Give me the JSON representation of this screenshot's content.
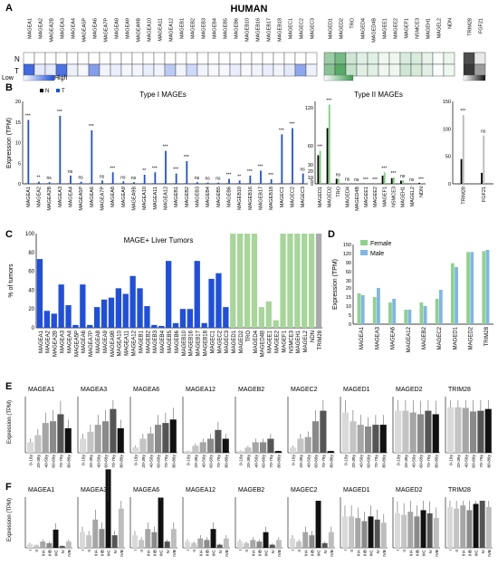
{
  "human_label": "HUMAN",
  "heatmap": {
    "row_labels": [
      "N",
      "T"
    ],
    "groups": [
      {
        "color": "#1f4fdc",
        "genes": [
          "MAGEA1",
          "MAGEA2",
          "MAGEA2B",
          "MAGEA3",
          "MAGEA4",
          "MAGEA5P",
          "MAGEA6",
          "MAGEA7P",
          "MAGEA8",
          "MAGEA9",
          "MAGEA9B",
          "MAGEA10",
          "MAGEA11",
          "MAGEA12",
          "MAGEB1",
          "MAGEB2",
          "MAGEB3",
          "MAGEB4",
          "MAGEB5",
          "MAGEB6",
          "MAGEB10",
          "MAGEB16",
          "MAGEB17",
          "MAGEB18",
          "MAGEC1",
          "MAGEC2",
          "MAGEC3"
        ],
        "N": [
          0,
          0,
          0,
          0,
          0,
          0,
          0,
          0,
          0,
          0,
          0,
          0,
          0,
          0,
          0,
          0,
          0,
          0,
          0,
          0,
          0,
          0,
          0,
          0,
          0,
          0,
          0
        ],
        "T": [
          0.85,
          0.12,
          0.12,
          0.8,
          0.08,
          0.04,
          0.55,
          0.06,
          0.1,
          0.05,
          0.05,
          0.1,
          0.06,
          0.3,
          0.06,
          0.22,
          0.06,
          0.04,
          0.04,
          0.1,
          0.04,
          0.06,
          0.1,
          0.06,
          0.12,
          0.5,
          0.08
        ]
      },
      {
        "color": "#3a9b4f",
        "genes": [
          "MAGED1",
          "MAGED2",
          "TRO",
          "MAGED4",
          "MAGED4B",
          "MAGEE1",
          "MAGEE2",
          "MAGEF1",
          "NSMCE3",
          "MAGEH1",
          "MAGEL2",
          "NDN"
        ],
        "N": [
          0.5,
          0.7,
          0.25,
          0.15,
          0.15,
          0.08,
          0.08,
          0.2,
          0.2,
          0.12,
          0.03,
          0.1
        ],
        "T": [
          0.6,
          0.85,
          0.3,
          0.15,
          0.15,
          0.08,
          0.08,
          0.25,
          0.22,
          0.15,
          0.03,
          0.08
        ]
      },
      {
        "color": "#222222",
        "genes": [
          "TRIM28",
          "FGF21"
        ],
        "N": [
          0.8,
          0.1
        ],
        "T": [
          0.9,
          0.45
        ]
      }
    ],
    "legend": {
      "low": "Low",
      "high": "High"
    }
  },
  "panelB": {
    "letter": "B",
    "legend": {
      "n": "N",
      "t": "T"
    },
    "ylabel": "Expression (TPM)",
    "typeI": {
      "title": "Type I MAGEs",
      "genes": [
        "MAGEA1",
        "MAGEA2",
        "MAGEA2B",
        "MAGEA3",
        "MAGEA4",
        "MAGEA5P",
        "MAGEA6",
        "MAGEA7P",
        "MAGEA8",
        "MAGEA9",
        "MAGEA9B",
        "MAGEA10",
        "MAGEA11",
        "MAGEA12",
        "MAGEB1",
        "MAGEB2",
        "MAGEB3",
        "MAGEB4",
        "MAGEB5",
        "MAGEB6",
        "MAGEB10",
        "MAGEB16",
        "MAGEB17",
        "MAGEB18",
        "MAGEC1",
        "MAGEC2",
        "MAGEC3"
      ],
      "N": [
        0.1,
        0.1,
        0.1,
        0.1,
        0.1,
        0.1,
        0.1,
        0.1,
        0.1,
        0.1,
        0.1,
        0.1,
        0.1,
        0.1,
        0.1,
        0.1,
        0.1,
        0.1,
        0.1,
        0.1,
        0.1,
        0.1,
        0.1,
        0.1,
        0.1,
        0.1,
        0.1
      ],
      "T": [
        15.5,
        0.5,
        0.4,
        16.5,
        2,
        0.5,
        13,
        0.8,
        2.8,
        0.6,
        0.4,
        2.2,
        2.8,
        8,
        2.5,
        5.5,
        0.4,
        0.3,
        0.3,
        1.2,
        0.8,
        2,
        3.2,
        1.1,
        12,
        13.5,
        2.5
      ],
      "sig": [
        "***",
        "**",
        "ns",
        "***",
        "ns",
        "ns",
        "***",
        "ns",
        "***",
        "ns",
        "ns",
        "**",
        "***",
        "***",
        "***",
        "***",
        "ns",
        "ns",
        "ns",
        "***",
        "**",
        "***",
        "***",
        "***",
        "***",
        "***",
        "ns"
      ],
      "yticks": [
        "0",
        "5",
        "10",
        "15",
        "20"
      ]
    },
    "typeII": {
      "title": "Type II MAGEs",
      "genes": [
        "MAGED1",
        "MAGED2",
        "TRO",
        "MAGED4",
        "MAGED4B",
        "MAGEE1",
        "MAGEE2",
        "MAGEF1",
        "NSMCE3",
        "MAGEH1",
        "MAGEL2",
        "NDN"
      ],
      "N": [
        45,
        88,
        8,
        0.3,
        0.2,
        0.4,
        0.1,
        13,
        9,
        5,
        0.1,
        1.5
      ],
      "T": [
        52,
        125,
        8,
        0.5,
        0.3,
        0.3,
        0.2,
        18,
        10,
        6,
        0.1,
        0.8
      ],
      "sig": [
        "***",
        "***",
        "ns",
        "ns",
        "ns",
        "***",
        "***",
        "***",
        "***",
        "ns",
        "ns",
        "***"
      ],
      "yticks": [
        "0",
        "5",
        "10",
        "20",
        "30",
        "60",
        "120"
      ]
    },
    "other": {
      "genes": [
        "TRIM28",
        "FGF21"
      ],
      "N": [
        45,
        20
      ],
      "T": [
        125,
        88
      ],
      "sig": [
        "***",
        "ns"
      ],
      "yticks": [
        "0",
        "50",
        "100",
        "150"
      ]
    }
  },
  "panelC": {
    "letter": "C",
    "title": "MAGE+ Liver Tumors",
    "ylabel": "% of tumors",
    "yticks": [
      "0",
      "20",
      "40",
      "60",
      "80",
      "100"
    ],
    "genes": [
      "MAGEA1",
      "MAGEA2",
      "MAGEA2B",
      "MAGEA3",
      "MAGEA4",
      "MAGEA5P",
      "MAGEA6",
      "MAGEA7P",
      "MAGEA8",
      "MAGEA9",
      "MAGEA9B",
      "MAGEA10",
      "MAGEA11",
      "MAGEA12",
      "MAGEB1",
      "MAGEB2",
      "MAGEB3",
      "MAGEB4",
      "MAGEB5",
      "MAGEB6",
      "MAGEB10",
      "MAGEB16",
      "MAGEB17",
      "MAGEB18",
      "MAGEC1",
      "MAGEC2",
      "MAGEC3",
      "MAGED1",
      "MAGED2",
      "TRO",
      "MAGED4",
      "MAGED4B",
      "MAGEE1",
      "MAGEE2",
      "MAGEF1",
      "NSMCE3",
      "MAGEH1",
      "MAGEL2",
      "NDN",
      "TRIM28"
    ],
    "values": [
      73,
      18,
      15,
      46,
      24,
      3,
      46,
      3,
      22,
      30,
      32,
      42,
      36,
      55,
      42,
      23,
      3,
      2,
      71,
      5,
      20,
      20,
      71,
      5,
      52,
      58,
      22,
      100,
      100,
      100,
      100,
      22,
      28,
      8,
      100,
      100,
      100,
      100,
      100,
      100
    ]
  },
  "panelD": {
    "letter": "D",
    "ylabel": "Expression (TPM)",
    "legend": {
      "female": "Female",
      "male": "Male"
    },
    "yticks": [
      "0",
      "5",
      "10",
      "15",
      "20",
      "30",
      "60",
      "90",
      "120",
      "150"
    ],
    "genes": [
      "MAGEA1",
      "MAGEA3",
      "MAGEA6",
      "MAGEA12",
      "MAGEB2",
      "MAGEC2",
      "MAGED1",
      "MAGED2",
      "TRIM28"
    ],
    "female": [
      17,
      15,
      12,
      8,
      12,
      14,
      88,
      125,
      128
    ],
    "male": [
      16,
      20,
      14,
      8,
      10,
      19,
      75,
      125,
      132
    ]
  },
  "panelE": {
    "letter": "E",
    "ylabel": "Expression (TPM)",
    "categories": [
      "0-19y",
      "20-39y",
      "40-59y",
      "60-69y",
      "70-79y",
      "80-89y"
    ],
    "panels": [
      {
        "title": "MAGEA1",
        "values": [
          6,
          10,
          17,
          18,
          22,
          14
        ],
        "sig": true
      },
      {
        "title": "MAGEA3",
        "values": [
          8,
          12,
          16,
          18,
          25,
          14
        ],
        "sig": true
      },
      {
        "title": "MAGEA6",
        "values": [
          3,
          8,
          11,
          16,
          17,
          19
        ],
        "sig": true
      },
      {
        "title": "MAGEA12",
        "values": [
          1,
          4,
          6,
          8,
          13,
          8
        ],
        "sig": false
      },
      {
        "title": "MAGEB2",
        "values": [
          1,
          3,
          6,
          6,
          8,
          1
        ],
        "sig": false
      },
      {
        "title": "MAGEC2",
        "values": [
          3,
          8,
          9,
          18,
          24,
          1
        ],
        "sig": true
      },
      {
        "title": "MAGED1",
        "values": [
          115,
          90,
          80,
          75,
          80,
          80
        ],
        "sig": false
      },
      {
        "title": "MAGED2",
        "values": [
          120,
          120,
          115,
          110,
          120,
          110
        ],
        "sig": false
      },
      {
        "title": "TRIM28",
        "values": [
          130,
          130,
          128,
          118,
          120,
          125
        ],
        "sig": false
      }
    ]
  },
  "panelF": {
    "letter": "F",
    "ylabel": "Expression (TPM)",
    "categories": [
      "I",
      "II",
      "IIIA",
      "IIIB",
      "IIIC",
      "IV",
      "IVB"
    ],
    "panels": [
      {
        "title": "MAGEA1",
        "values": [
          12,
          8,
          20,
          15,
          58,
          6,
          20
        ]
      },
      {
        "title": "MAGEA3",
        "values": [
          10,
          8,
          18,
          12,
          50,
          8,
          25
        ]
      },
      {
        "title": "MAGEA6",
        "values": [
          8,
          5,
          12,
          10,
          32,
          4,
          12
        ]
      },
      {
        "title": "MAGEA12",
        "values": [
          4,
          3,
          6,
          5,
          12,
          2,
          6
        ]
      },
      {
        "title": "MAGEB2",
        "values": [
          4,
          3,
          5,
          4,
          10,
          2,
          5
        ]
      },
      {
        "title": "MAGEC2",
        "values": [
          6,
          4,
          10,
          8,
          30,
          3,
          10
        ]
      },
      {
        "title": "MAGED1",
        "values": [
          100,
          100,
          95,
          85,
          100,
          90,
          80
        ]
      },
      {
        "title": "MAGED2",
        "values": [
          110,
          105,
          115,
          100,
          120,
          110,
          95
        ]
      },
      {
        "title": "TRIM28",
        "values": [
          130,
          125,
          135,
          120,
          140,
          150,
          130
        ]
      }
    ]
  }
}
